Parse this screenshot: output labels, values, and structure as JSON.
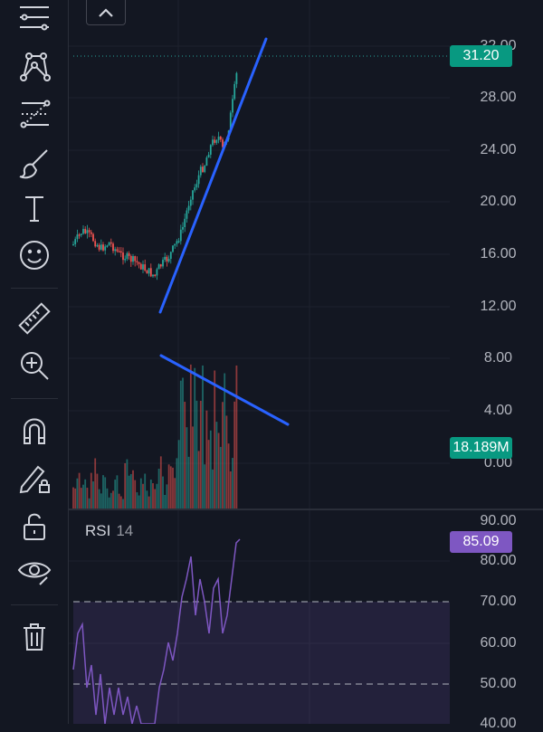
{
  "toolbar": {
    "tools": [
      {
        "name": "trend-line-tools-icon"
      },
      {
        "name": "pattern-tools-icon"
      },
      {
        "name": "fib-tools-icon"
      },
      {
        "name": "brush-icon"
      },
      {
        "name": "text-tool-icon"
      },
      {
        "name": "emoji-icon"
      },
      {
        "name": "ruler-icon"
      },
      {
        "name": "zoom-in-icon"
      },
      {
        "name": "magnet-icon"
      },
      {
        "name": "pencil-lock-icon"
      },
      {
        "name": "unlock-icon"
      },
      {
        "name": "eye-icon"
      },
      {
        "name": "trash-icon"
      }
    ]
  },
  "price_axis": {
    "labels": [
      "32.00",
      "28.00",
      "24.00",
      "20.00",
      "16.00",
      "12.00",
      "8.00",
      "4.00",
      "0.00"
    ],
    "last_price": "31.20",
    "volume": "18.189M"
  },
  "rsi_panel": {
    "title": "RSI",
    "period": "14",
    "axis_labels": [
      "90.00",
      "80.00",
      "70.00",
      "60.00",
      "50.00",
      "40.00"
    ],
    "current": "85.09"
  },
  "colors": {
    "background": "#131722",
    "up": "#26a69a",
    "down": "#ef5350",
    "drawing": "#2962ff",
    "rsi": "#7e57c2"
  }
}
